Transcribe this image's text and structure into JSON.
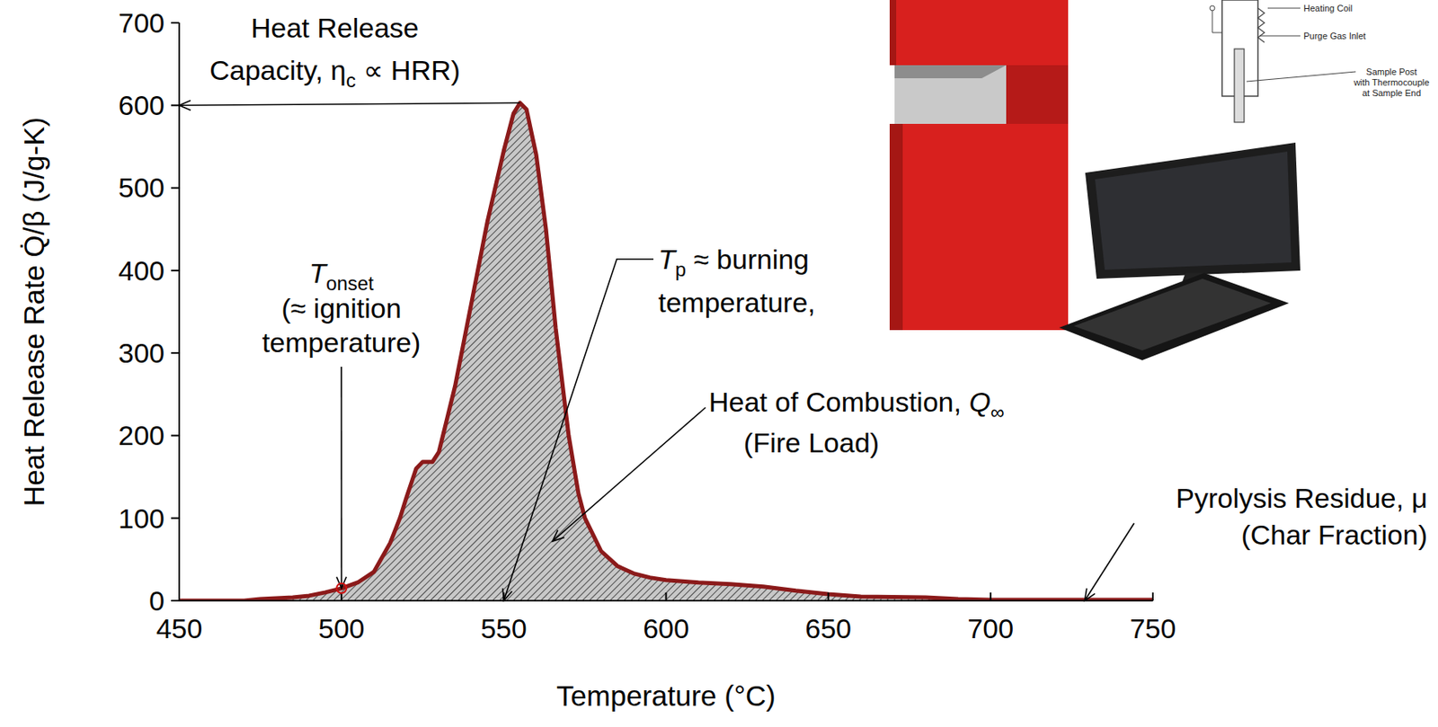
{
  "chart_data": {
    "type": "area",
    "x_label": "Temperature (°C)",
    "y_label": "Heat Release Rate Q̇/β (J/g-K)",
    "color": "#8b1a1a",
    "grid": false,
    "xlim": [
      450,
      750
    ],
    "ylim": [
      0,
      700
    ],
    "xticks": [
      450,
      500,
      550,
      600,
      650,
      700,
      750
    ],
    "yticks": [
      0,
      100,
      200,
      300,
      400,
      500,
      600,
      700
    ],
    "x": [
      450,
      470,
      475,
      485,
      490,
      495,
      500,
      505,
      510,
      515,
      518,
      520,
      523,
      525,
      528,
      530,
      535,
      540,
      545,
      550,
      553,
      555,
      557,
      560,
      563,
      566,
      570,
      573,
      575,
      580,
      585,
      590,
      595,
      600,
      610,
      620,
      630,
      640,
      650,
      660,
      680,
      690,
      700,
      720,
      750
    ],
    "values": [
      0,
      0,
      2,
      4,
      6,
      10,
      15,
      22,
      35,
      70,
      100,
      125,
      160,
      168,
      168,
      180,
      260,
      360,
      460,
      545,
      590,
      603,
      595,
      540,
      450,
      330,
      200,
      130,
      100,
      60,
      42,
      33,
      28,
      25,
      22,
      20,
      17,
      12,
      8,
      5,
      4,
      2,
      1,
      1,
      1
    ],
    "annotations": [
      {
        "lines": [
          [
            {
              "text": "Heat Release"
            }
          ],
          [
            {
              "text": "Capacity, η"
            },
            {
              "text": "c",
              "sub": true
            },
            {
              "text": " ∝ HRR)"
            }
          ]
        ],
        "x": 450,
        "y": 600
      },
      {
        "lines": [
          [
            {
              "text": "T",
              "italic": true
            },
            {
              "text": "onset",
              "sub": true
            }
          ],
          [
            {
              "text": "(≈ ignition"
            }
          ],
          [
            {
              "text": "temperature)"
            }
          ]
        ],
        "x": 500,
        "y": 15
      },
      {
        "lines": [
          [
            {
              "text": "T",
              "italic": true
            },
            {
              "text": "p",
              "sub": true
            },
            {
              "text": " ≈ burning"
            }
          ],
          [
            {
              "text": "temperature,"
            }
          ]
        ],
        "x": 550,
        "y": 0
      },
      {
        "lines": [
          [
            {
              "text": "Heat of Combustion, "
            },
            {
              "text": "Q",
              "italic": true
            },
            {
              "text": "∞",
              "sub": true
            }
          ],
          [
            {
              "text": "(Fire Load)"
            }
          ]
        ],
        "x": 565,
        "y": 72
      },
      {
        "lines": [
          [
            {
              "text": "Pyrolysis Residue, μ"
            }
          ],
          [
            {
              "text": "(Char Fraction)"
            }
          ]
        ],
        "x": 729,
        "y": 0
      }
    ],
    "inset_labels": [
      [
        "Heating Coil"
      ],
      [
        "Purge Gas Inlet"
      ],
      [
        "Sample Post",
        "with Thermocouple",
        "at Sample End"
      ]
    ]
  }
}
